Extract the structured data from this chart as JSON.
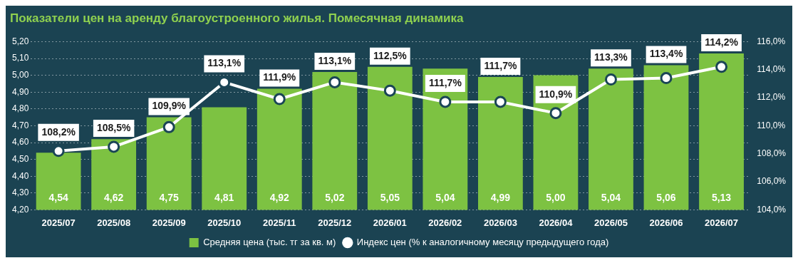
{
  "chart_data": {
    "type": "bar",
    "title": "Показатели цен на аренду благоустроенного жилья. Помесячная динамика",
    "categories": [
      "2025/07",
      "2025/08",
      "2025/09",
      "2025/10",
      "2025/11",
      "2025/12",
      "2026/01",
      "2026/02",
      "2026/03",
      "2026/04",
      "2026/05",
      "2026/06",
      "2026/07"
    ],
    "series": [
      {
        "name": "Средняя цена (тыс. тг за кв. м)",
        "color": "#7dc242",
        "values": [
          4.54,
          4.62,
          4.75,
          4.81,
          4.92,
          5.02,
          5.05,
          5.04,
          4.99,
          5.0,
          5.04,
          5.06,
          5.13
        ],
        "value_labels": [
          "4,54",
          "4,62",
          "4,75",
          "4,81",
          "4,92",
          "5,02",
          "5,05",
          "5,04",
          "4,99",
          "5,00",
          "5,04",
          "5,06",
          "5,13"
        ]
      },
      {
        "name": "Индекс цен (% к аналогичному месяцу предыдущего года)",
        "type": "line",
        "axis": "y2",
        "color": "#ffffff",
        "values": [
          108.2,
          108.5,
          109.9,
          113.1,
          111.9,
          113.1,
          112.5,
          111.7,
          111.7,
          110.9,
          113.3,
          113.4,
          114.2
        ],
        "value_labels": [
          "108,2%",
          "108,5%",
          "109,9%",
          "113,1%",
          "111,9%",
          "113,1%",
          "112,5%",
          "111,7%",
          "111,7%",
          "110,9%",
          "113,3%",
          "113,4%",
          "114,2%"
        ]
      }
    ],
    "ylim": [
      4.2,
      5.2
    ],
    "yticks": [
      {
        "value": 4.2,
        "label": "4,20"
      },
      {
        "value": 4.3,
        "label": "4,30"
      },
      {
        "value": 4.4,
        "label": "4,40"
      },
      {
        "value": 4.5,
        "label": "4,50"
      },
      {
        "value": 4.6,
        "label": "4,60"
      },
      {
        "value": 4.7,
        "label": "4,70"
      },
      {
        "value": 4.8,
        "label": "4,80"
      },
      {
        "value": 4.9,
        "label": "4,90"
      },
      {
        "value": 5.0,
        "label": "5,00"
      },
      {
        "value": 5.1,
        "label": "5,10"
      },
      {
        "value": 5.2,
        "label": "5,20"
      }
    ],
    "y2lim": [
      104,
      116
    ],
    "y2ticks": [
      {
        "value": 104,
        "label": "104,0%"
      },
      {
        "value": 106,
        "label": "106,0%"
      },
      {
        "value": 108,
        "label": "108,0%"
      },
      {
        "value": 110,
        "label": "110,0%"
      },
      {
        "value": 112,
        "label": "112,0%"
      },
      {
        "value": 114,
        "label": "114,0%"
      },
      {
        "value": 116,
        "label": "116,0%"
      }
    ],
    "grid": "y",
    "legend": "bottom",
    "marker": "circle",
    "line_style": "solid"
  }
}
